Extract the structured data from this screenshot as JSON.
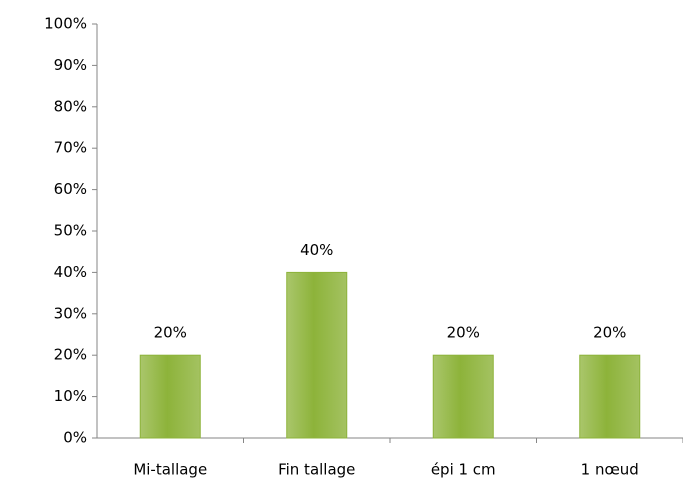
{
  "chart_data": {
    "type": "bar",
    "categories": [
      "Mi-tallage",
      "Fin tallage",
      "épi 1 cm",
      "1 nœud"
    ],
    "values": [
      20,
      40,
      20,
      20
    ],
    "value_labels": [
      "20%",
      "40%",
      "20%",
      "20%"
    ],
    "color": "#8db33a",
    "ylim": [
      0,
      100
    ],
    "yticks": [
      {
        "value": 0,
        "label": "0%"
      },
      {
        "value": 10,
        "label": "10%"
      },
      {
        "value": 20,
        "label": "20%"
      },
      {
        "value": 30,
        "label": "30%"
      },
      {
        "value": 40,
        "label": "40%"
      },
      {
        "value": 50,
        "label": "50%"
      },
      {
        "value": 60,
        "label": "60%"
      },
      {
        "value": 70,
        "label": "70%"
      },
      {
        "value": 80,
        "label": "80%"
      },
      {
        "value": 90,
        "label": "90%"
      },
      {
        "value": 100,
        "label": "100%"
      }
    ],
    "grid": false
  }
}
